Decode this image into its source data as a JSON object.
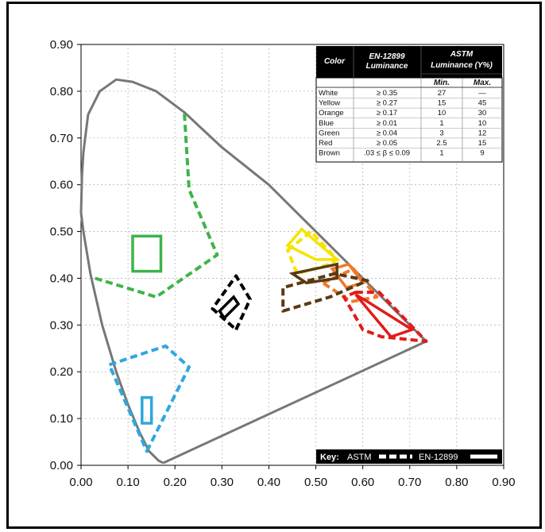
{
  "chart_data": {
    "type": "scatter",
    "title": "",
    "xlabel": "",
    "ylabel": "",
    "xlim": [
      0,
      0.9
    ],
    "ylim": [
      0,
      0.9
    ],
    "x_ticks": [
      "0.00",
      "0.10",
      "0.20",
      "0.30",
      "0.40",
      "0.50",
      "0.60",
      "0.70",
      "0.80",
      "0.90"
    ],
    "y_ticks": [
      "0.00",
      "0.10",
      "0.20",
      "0.30",
      "0.40",
      "0.50",
      "0.60",
      "0.70",
      "0.80",
      "0.90"
    ],
    "grid": true,
    "spectral_locus": {
      "color": "#777777",
      "points": [
        [
          0.175,
          0.005
        ],
        [
          0.165,
          0.01
        ],
        [
          0.145,
          0.03
        ],
        [
          0.125,
          0.07
        ],
        [
          0.1,
          0.13
        ],
        [
          0.075,
          0.2
        ],
        [
          0.045,
          0.3
        ],
        [
          0.02,
          0.41
        ],
        [
          0.005,
          0.5
        ],
        [
          0.0,
          0.54
        ],
        [
          0.002,
          0.62
        ],
        [
          0.005,
          0.67
        ],
        [
          0.015,
          0.75
        ],
        [
          0.04,
          0.8
        ],
        [
          0.075,
          0.825
        ],
        [
          0.11,
          0.82
        ],
        [
          0.16,
          0.8
        ],
        [
          0.22,
          0.755
        ],
        [
          0.3,
          0.68
        ],
        [
          0.4,
          0.6
        ],
        [
          0.5,
          0.5
        ],
        [
          0.6,
          0.4
        ],
        [
          0.7,
          0.3
        ],
        [
          0.735,
          0.265
        ],
        [
          0.175,
          0.005
        ]
      ]
    },
    "series": [
      {
        "name": "White",
        "color": "#000000",
        "astm": [
          [
            0.305,
            0.315
          ],
          [
            0.335,
            0.345
          ],
          [
            0.325,
            0.36
          ],
          [
            0.295,
            0.33
          ]
        ],
        "en": [
          [
            0.33,
            0.29
          ],
          [
            0.36,
            0.355
          ],
          [
            0.33,
            0.405
          ],
          [
            0.28,
            0.335
          ]
        ]
      },
      {
        "name": "Yellow",
        "color": "#f5e300",
        "astm": [
          [
            0.5,
            0.44
          ],
          [
            0.545,
            0.44
          ],
          [
            0.47,
            0.505
          ],
          [
            0.44,
            0.47
          ]
        ],
        "en": [
          [
            0.44,
            0.46
          ],
          [
            0.49,
            0.5
          ],
          [
            0.545,
            0.44
          ],
          [
            0.53,
            0.43
          ],
          [
            0.46,
            0.41
          ]
        ]
      },
      {
        "name": "Orange",
        "color": "#ee7a2a",
        "astm": [
          [
            0.535,
            0.42
          ],
          [
            0.57,
            0.43
          ],
          [
            0.6,
            0.39
          ],
          [
            0.565,
            0.38
          ]
        ],
        "en": [
          [
            0.515,
            0.39
          ],
          [
            0.58,
            0.42
          ],
          [
            0.63,
            0.36
          ],
          [
            0.575,
            0.35
          ]
        ]
      },
      {
        "name": "Brown",
        "color": "#5a3a12",
        "astm": [
          [
            0.45,
            0.41
          ],
          [
            0.545,
            0.43
          ],
          [
            0.545,
            0.4
          ],
          [
            0.48,
            0.39
          ]
        ],
        "en": [
          [
            0.43,
            0.33
          ],
          [
            0.53,
            0.36
          ],
          [
            0.61,
            0.395
          ],
          [
            0.54,
            0.41
          ],
          [
            0.43,
            0.38
          ]
        ]
      },
      {
        "name": "Red",
        "color": "#e21b1b",
        "astm": [
          [
            0.61,
            0.35
          ],
          [
            0.705,
            0.29
          ],
          [
            0.66,
            0.275
          ],
          [
            0.585,
            0.365
          ]
        ],
        "en": [
          [
            0.585,
            0.37
          ],
          [
            0.635,
            0.37
          ],
          [
            0.735,
            0.265
          ],
          [
            0.64,
            0.275
          ],
          [
            0.6,
            0.29
          ],
          [
            0.56,
            0.36
          ]
        ]
      },
      {
        "name": "Green",
        "color": "#3eb44a",
        "astm": [
          [
            0.11,
            0.415
          ],
          [
            0.17,
            0.415
          ],
          [
            0.17,
            0.49
          ],
          [
            0.11,
            0.49
          ]
        ],
        "en": [
          [
            0.03,
            0.4
          ],
          [
            0.16,
            0.36
          ],
          [
            0.29,
            0.45
          ],
          [
            0.23,
            0.59
          ],
          [
            0.22,
            0.755
          ]
        ]
      },
      {
        "name": "Blue",
        "color": "#2ea7df",
        "astm": [
          [
            0.13,
            0.09
          ],
          [
            0.15,
            0.09
          ],
          [
            0.15,
            0.145
          ],
          [
            0.13,
            0.145
          ]
        ],
        "en": [
          [
            0.14,
            0.03
          ],
          [
            0.23,
            0.21
          ],
          [
            0.18,
            0.255
          ],
          [
            0.06,
            0.215
          ]
        ]
      }
    ]
  },
  "table": {
    "head": {
      "color": "Color",
      "en_line1": "EN-12899",
      "en_line2": "Luminance",
      "astm_line1": "ASTM",
      "astm_line2": "Luminance (Y%)",
      "min": "Min.",
      "max": "Max."
    },
    "rows": [
      {
        "color": "White",
        "en": "≥ 0.35",
        "min": "27",
        "max": "—"
      },
      {
        "color": "Yellow",
        "en": "≥ 0.27",
        "min": "15",
        "max": "45"
      },
      {
        "color": "Orange",
        "en": "≥ 0.17",
        "min": "10",
        "max": "30"
      },
      {
        "color": "Blue",
        "en": "≥ 0.01",
        "min": "1",
        "max": "10"
      },
      {
        "color": "Green",
        "en": "≥ 0.04",
        "min": "3",
        "max": "12"
      },
      {
        "color": "Red",
        "en": "≥ 0.05",
        "min": "2.5",
        "max": "15"
      },
      {
        "color": "Brown",
        "en": ".03 ≤ β ≤ 0.09",
        "min": "1",
        "max": "9"
      }
    ]
  },
  "key": {
    "title": "Key:",
    "astm": "ASTM",
    "en": "EN-12899"
  }
}
